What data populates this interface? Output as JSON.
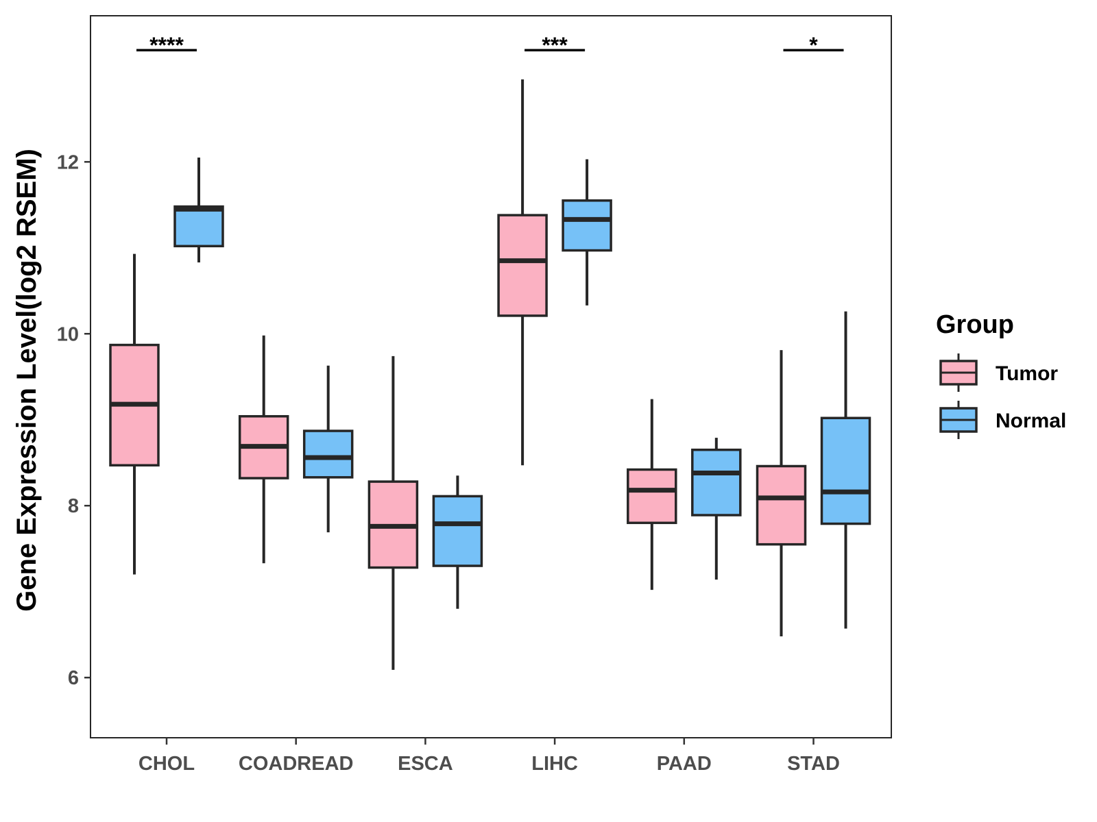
{
  "chart_data": {
    "type": "boxplot",
    "title": "",
    "xlabel": "",
    "ylabel": "Gene Expression Level(log2 RSEM)",
    "ylim": [
      5.3,
      13.7
    ],
    "yticks": [
      6,
      8,
      10,
      12
    ],
    "grid": false,
    "categories": [
      "CHOL",
      "COADREAD",
      "ESCA",
      "LIHC",
      "PAAD",
      "STAD"
    ],
    "legend": {
      "title": "Group",
      "position": "right",
      "entries": [
        {
          "name": "Tumor",
          "color": "#FBB1C2"
        },
        {
          "name": "Normal",
          "color": "#76C1F7"
        }
      ]
    },
    "series": [
      {
        "name": "Tumor",
        "color": "#FBB1C2",
        "boxes": [
          {
            "min": 7.2,
            "q1": 8.47,
            "median": 9.18,
            "q3": 9.87,
            "max": 10.93
          },
          {
            "min": 7.33,
            "q1": 8.32,
            "median": 8.69,
            "q3": 9.04,
            "max": 9.98
          },
          {
            "min": 6.09,
            "q1": 7.28,
            "median": 7.76,
            "q3": 8.28,
            "max": 9.74
          },
          {
            "min": 8.47,
            "q1": 10.21,
            "median": 10.85,
            "q3": 11.38,
            "max": 12.96
          },
          {
            "min": 7.02,
            "q1": 7.8,
            "median": 8.18,
            "q3": 8.42,
            "max": 9.24
          },
          {
            "min": 6.48,
            "q1": 7.55,
            "median": 8.09,
            "q3": 8.46,
            "max": 9.81
          }
        ]
      },
      {
        "name": "Normal",
        "color": "#76C1F7",
        "boxes": [
          {
            "min": 10.83,
            "q1": 11.02,
            "median": 11.45,
            "q3": 11.48,
            "max": 12.05
          },
          {
            "min": 7.69,
            "q1": 8.33,
            "median": 8.56,
            "q3": 8.87,
            "max": 9.63
          },
          {
            "min": 6.8,
            "q1": 7.3,
            "median": 7.79,
            "q3": 8.11,
            "max": 8.35
          },
          {
            "min": 10.33,
            "q1": 10.97,
            "median": 11.33,
            "q3": 11.55,
            "max": 12.03
          },
          {
            "min": 7.14,
            "q1": 7.89,
            "median": 8.38,
            "q3": 8.65,
            "max": 8.79
          },
          {
            "min": 6.57,
            "q1": 7.79,
            "median": 8.16,
            "q3": 9.02,
            "max": 10.26
          }
        ]
      }
    ],
    "annotations": [
      {
        "category": "CHOL",
        "label": "****",
        "y": 13.3
      },
      {
        "category": "LIHC",
        "label": "***",
        "y": 13.3
      },
      {
        "category": "STAD",
        "label": "*",
        "y": 13.3
      }
    ]
  }
}
